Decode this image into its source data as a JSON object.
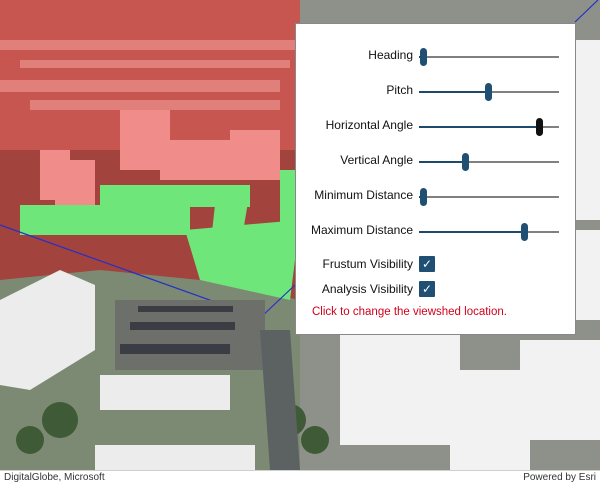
{
  "attribution": {
    "left": "DigitalGlobe, Microsoft",
    "right": "Powered by Esri"
  },
  "panel": {
    "sliders": [
      {
        "label": "Heading",
        "value": 0.03,
        "active": false
      },
      {
        "label": "Pitch",
        "value": 0.49,
        "active": false
      },
      {
        "label": "Horizontal Angle",
        "value": 0.86,
        "active": true
      },
      {
        "label": "Vertical Angle",
        "value": 0.33,
        "active": false
      },
      {
        "label": "Minimum Distance",
        "value": 0.03,
        "active": false
      },
      {
        "label": "Maximum Distance",
        "value": 0.75,
        "active": false
      }
    ],
    "checkboxes": [
      {
        "label": "Frustum Visibility",
        "checked": true
      },
      {
        "label": "Analysis Visibility",
        "checked": true
      }
    ],
    "hint": "Click to change the viewshed location."
  },
  "colors": {
    "accent": "#1f4f73",
    "hint": "#d0021b",
    "visible": "#6fe67a",
    "hidden": "#e0605c"
  }
}
